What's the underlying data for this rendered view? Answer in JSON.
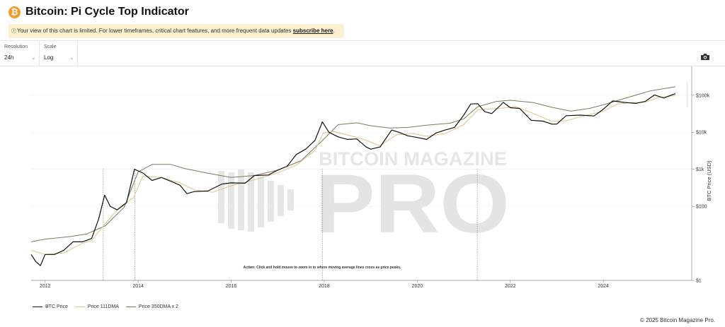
{
  "header": {
    "title": "Bitcoin: Pi Cycle Top Indicator",
    "badge_symbol": "₿",
    "notice_icon": "ⓘ",
    "notice_text": "Your view of this chart is limited. For lower timeframes, critical chart features, and more frequent data updates ",
    "notice_link": "subscribe here",
    "notice_end": "."
  },
  "controls": {
    "resolution_label": "Resolution",
    "resolution_value": "24h",
    "scale_label": "Scale",
    "scale_value": "Log",
    "camera_icon": "camera-icon"
  },
  "legend": {
    "btc": "BTC Price",
    "ma111": "Price 111DMA",
    "ma350": "Price 350DMA x 2"
  },
  "copyright": "© 2025 Bitcoin Magazine Pro.",
  "colors": {
    "btc": "#111111",
    "ma111": "#d9c58e",
    "ma350": "#7a7a62",
    "badge": "#f29a2e"
  },
  "chart_data": {
    "type": "line",
    "title": "",
    "ylabel": "BTC Price (USD)",
    "xlabel": "",
    "y_scale": "log",
    "ylim": [
      1,
      600000
    ],
    "xlim": [
      2011.7,
      2025.9
    ],
    "grid": true,
    "legend_position": "bottom-left",
    "x_ticks": [
      {
        "v": 2012,
        "label": "2012"
      },
      {
        "v": 2014,
        "label": "2014"
      },
      {
        "v": 2016,
        "label": "2016"
      },
      {
        "v": 2018,
        "label": "2018"
      },
      {
        "v": 2020,
        "label": "2020"
      },
      {
        "v": 2022,
        "label": "2022"
      },
      {
        "v": 2024,
        "label": "2024"
      }
    ],
    "y_ticks": [
      {
        "v": 1,
        "label": "$1"
      },
      {
        "v": 100,
        "label": "$100"
      },
      {
        "v": 1000,
        "label": "$1k"
      },
      {
        "v": 10000,
        "label": "$10k"
      },
      {
        "v": 100000,
        "label": "$100k"
      }
    ],
    "annotation": "Action: Click and hold mouse to zoom in to where moving average lines cross as price peaks.",
    "watermark": "BITCOIN MAGAZINE PRO",
    "cross_dates": [
      2013.25,
      2013.93,
      2017.96,
      2021.29
    ],
    "series": [
      {
        "name": "BTC Price",
        "key": "btc",
        "x": [
          2011.7,
          2011.8,
          2011.9,
          2012.0,
          2012.2,
          2012.4,
          2012.6,
          2012.8,
          2013.0,
          2013.15,
          2013.28,
          2013.4,
          2013.55,
          2013.75,
          2013.92,
          2014.1,
          2014.3,
          2014.5,
          2014.75,
          2014.9,
          2015.05,
          2015.2,
          2015.5,
          2015.8,
          2016.0,
          2016.3,
          2016.5,
          2016.8,
          2017.0,
          2017.2,
          2017.4,
          2017.6,
          2017.8,
          2017.96,
          2018.1,
          2018.3,
          2018.5,
          2018.7,
          2018.9,
          2019.0,
          2019.2,
          2019.45,
          2019.6,
          2019.8,
          2020.0,
          2020.2,
          2020.4,
          2020.6,
          2020.8,
          2021.0,
          2021.15,
          2021.3,
          2021.45,
          2021.6,
          2021.75,
          2021.85,
          2022.0,
          2022.2,
          2022.45,
          2022.7,
          2022.9,
          2023.0,
          2023.2,
          2023.5,
          2023.8,
          2024.0,
          2024.2,
          2024.45,
          2024.7,
          2024.9,
          2025.1,
          2025.3,
          2025.5,
          2025.55
        ],
        "values": [
          5,
          3.2,
          2.5,
          5,
          5,
          6.5,
          11,
          11,
          13.5,
          45,
          200,
          100,
          80,
          125,
          1000,
          800,
          500,
          600,
          450,
          370,
          220,
          250,
          260,
          400,
          430,
          420,
          680,
          700,
          950,
          1200,
          2500,
          3500,
          6000,
          19000,
          10000,
          7500,
          6400,
          6600,
          4000,
          3500,
          4000,
          11500,
          10000,
          8000,
          7200,
          6400,
          9500,
          11500,
          13500,
          29000,
          58000,
          59000,
          36000,
          32000,
          48000,
          64000,
          46000,
          44000,
          21000,
          20000,
          16500,
          16700,
          28000,
          29000,
          27500,
          42000,
          70000,
          64000,
          60000,
          68000,
          102000,
          84000,
          105000,
          110000
        ]
      },
      {
        "name": "Price 111DMA",
        "key": "ma111",
        "x": [
          2011.7,
          2012.0,
          2012.4,
          2012.8,
          2013.0,
          2013.3,
          2013.6,
          2013.9,
          2014.1,
          2014.5,
          2014.9,
          2015.2,
          2015.6,
          2016.0,
          2016.5,
          2017.0,
          2017.4,
          2017.8,
          2017.98,
          2018.2,
          2018.6,
          2018.9,
          2019.2,
          2019.55,
          2019.9,
          2020.2,
          2020.6,
          2021.0,
          2021.3,
          2021.6,
          2021.85,
          2022.1,
          2022.5,
          2022.9,
          2023.2,
          2023.6,
          2024.0,
          2024.3,
          2024.6,
          2024.9,
          2025.2,
          2025.55
        ],
        "values": [
          6.5,
          5,
          5.5,
          10,
          12,
          35,
          95,
          170,
          650,
          600,
          430,
          280,
          240,
          360,
          520,
          800,
          1300,
          3200,
          9500,
          10500,
          7800,
          6100,
          4300,
          8500,
          9200,
          7800,
          9200,
          16000,
          40000,
          43000,
          45000,
          50000,
          32000,
          19500,
          20500,
          28000,
          37000,
          58000,
          63000,
          65000,
          88000,
          98000
        ]
      },
      {
        "name": "Price 350DMA x 2",
        "key": "ma350",
        "x": [
          2011.7,
          2012.0,
          2012.5,
          2012.9,
          2013.3,
          2013.7,
          2014.0,
          2014.3,
          2014.7,
          2015.0,
          2015.5,
          2016.0,
          2016.5,
          2017.0,
          2017.5,
          2017.95,
          2018.3,
          2018.7,
          2019.0,
          2019.4,
          2019.8,
          2020.2,
          2020.7,
          2021.0,
          2021.3,
          2021.7,
          2022.0,
          2022.5,
          2022.9,
          2023.3,
          2023.7,
          2024.0,
          2024.5,
          2025.0,
          2025.55
        ],
        "values": [
          11,
          13,
          15,
          18,
          30,
          95,
          850,
          1350,
          1350,
          1050,
          780,
          600,
          680,
          950,
          1700,
          5800,
          16000,
          18000,
          15000,
          13000,
          13500,
          15500,
          17500,
          23000,
          49000,
          68000,
          73000,
          63000,
          47000,
          37000,
          44000,
          55000,
          85000,
          130000,
          170000
        ]
      }
    ]
  }
}
